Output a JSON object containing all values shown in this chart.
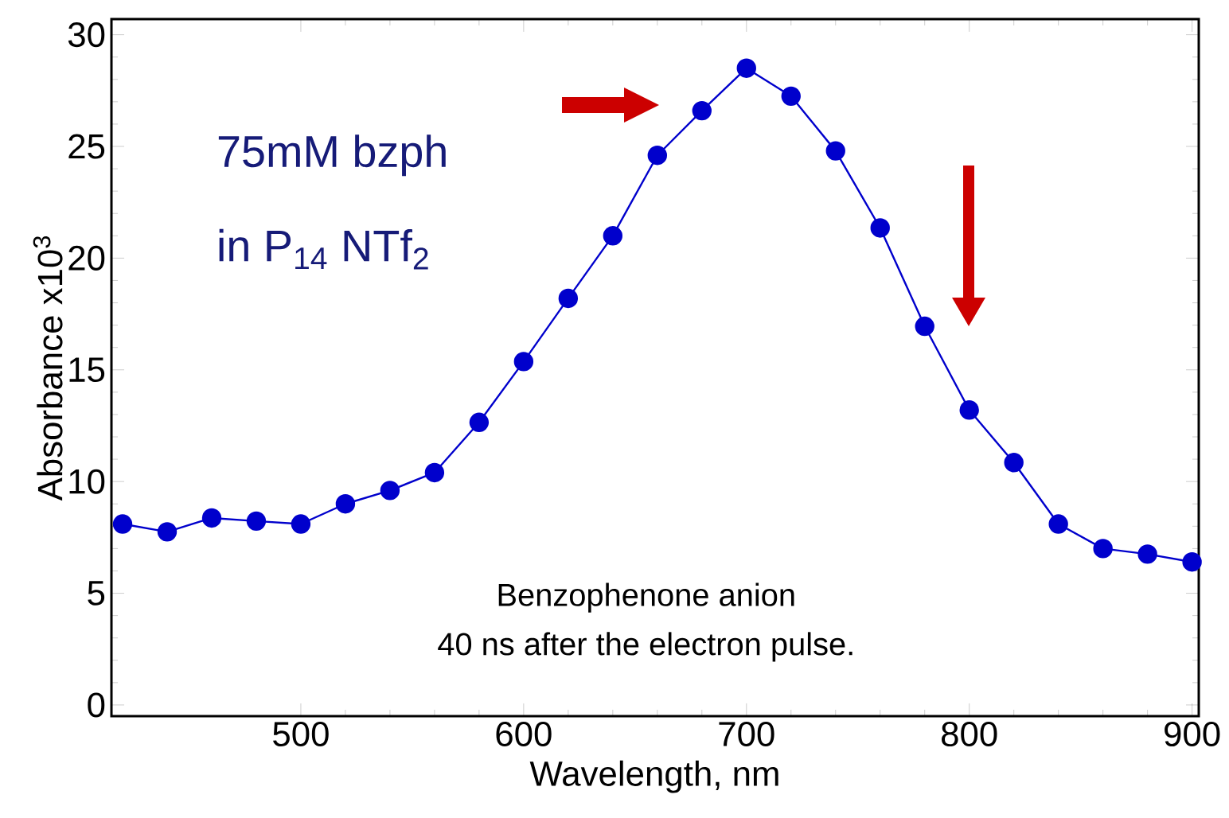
{
  "chart_data": {
    "type": "line",
    "xlabel": "Wavelength, nm",
    "ylabel": "Absorbance x10$^{3}$",
    "x": [
      420,
      440,
      460,
      480,
      500,
      520,
      540,
      560,
      580,
      600,
      620,
      640,
      660,
      680,
      700,
      720,
      740,
      760,
      780,
      800,
      820,
      840,
      860,
      880,
      900
    ],
    "series": [
      {
        "color": "#0000cc",
        "values": [
          8.1,
          7.75,
          8.37,
          8.23,
          8.1,
          9.0,
          9.6,
          10.4,
          12.65,
          15.37,
          18.2,
          21.0,
          24.6,
          26.6,
          28.5,
          27.25,
          24.8,
          21.35,
          16.95,
          13.2,
          10.85,
          8.1,
          7.0,
          6.75,
          6.4
        ]
      }
    ],
    "marker": "circle",
    "line_style": "solid",
    "xlim": [
      415,
      903
    ],
    "ylim": [
      -0.5,
      30.7
    ],
    "xticks": [
      500,
      600,
      700,
      800,
      900
    ],
    "yticks": [
      0,
      5,
      10,
      15,
      20,
      25,
      30
    ],
    "annotations": [
      "75mM bzph",
      "in P$_{14}$ NTf$_{2}$",
      "Benzophenone anion",
      "40 ns after the electron pulse."
    ]
  }
}
